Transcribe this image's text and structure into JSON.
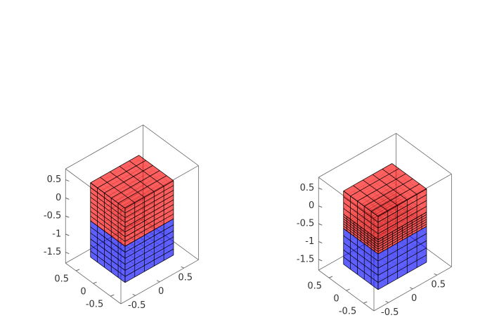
{
  "chart_data": [
    {
      "type": "mesh3d",
      "xlim": [
        -0.8,
        0.8
      ],
      "ylim": [
        -0.8,
        0.8
      ],
      "zlim": [
        -1.8,
        0.8
      ],
      "xticks": [
        -0.5,
        0,
        0.5
      ],
      "yticks": [
        0.5,
        0,
        -0.5
      ],
      "zticks": [
        0.5,
        0,
        -0.5,
        -1,
        -1.5
      ],
      "colors": {
        "upper": "#ff0000",
        "lower": "#0000ff"
      },
      "refined_band": false
    },
    {
      "type": "mesh3d",
      "xlim": [
        -0.8,
        0.8
      ],
      "ylim": [
        -0.8,
        0.8
      ],
      "zlim": [
        -1.8,
        0.8
      ],
      "xticks": [
        -0.5,
        0,
        0.5
      ],
      "yticks": [
        0.5,
        0,
        -0.5
      ],
      "zticks": [
        0.5,
        0,
        -0.5,
        -1,
        -1.5
      ],
      "colors": {
        "upper": "#ff0000",
        "lower": "#0000ff"
      },
      "refined_band": true
    }
  ]
}
